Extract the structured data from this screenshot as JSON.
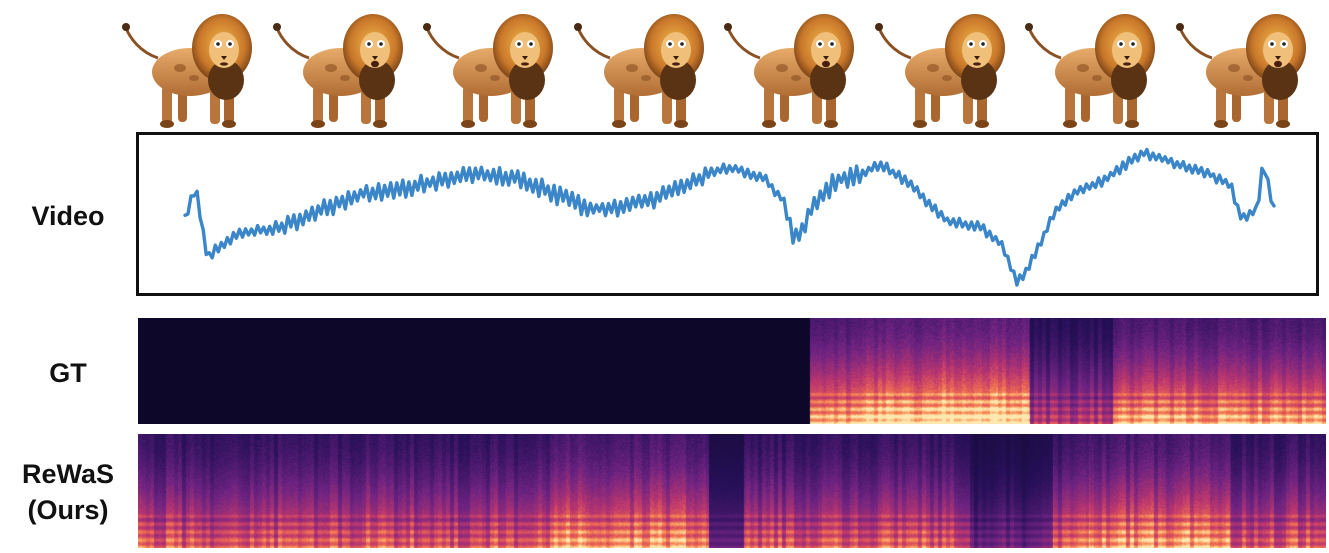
{
  "labels": {
    "video": "Video",
    "gt": "GT",
    "rewas_line1": "ReWaS",
    "rewas_line2": "(Ours)"
  },
  "frames": {
    "count": 8,
    "icon": "lion-frame-icon"
  },
  "colors": {
    "waveform": "#3a86c8",
    "border": "#111111",
    "spectrogram_low": "#0d0829",
    "spectrogram_mid": "#7a2a8a",
    "spectrogram_high": "#fde8b0"
  }
}
